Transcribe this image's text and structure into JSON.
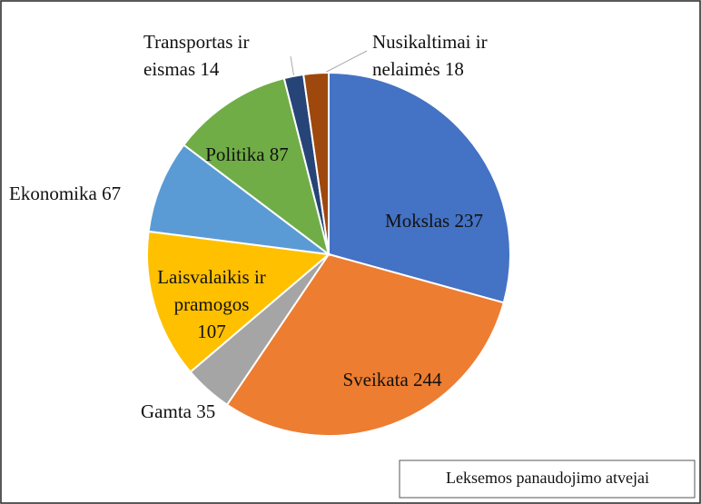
{
  "chart_data": {
    "type": "pie",
    "series": [
      {
        "name": "Leksemos panaudojimo atvejai",
        "values": [
          237,
          244,
          35,
          107,
          67,
          87,
          14,
          18
        ],
        "value_labels": [
          "Mokslas 237",
          "Sveikata 244",
          "Gamta 35",
          "Laisvalaikis ir\npramogos\n107",
          "Ekonomika 67",
          "Politika 87",
          "Transportas ir\neismas 14",
          "Nusikaltimai ir\nnelaimės 18"
        ],
        "colors": [
          "#4472c4",
          "#ed7d31",
          "#a5a5a5",
          "#ffc000",
          "#5b9bd5",
          "#70ad47",
          "#264478",
          "#9e480e"
        ]
      }
    ]
  }
}
